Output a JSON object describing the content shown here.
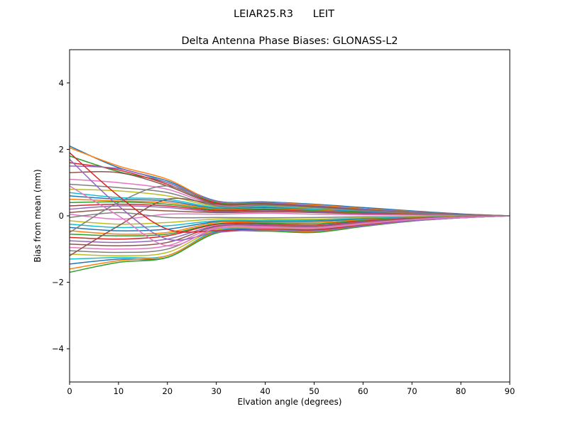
{
  "figure": {
    "background": "#ffffff",
    "frame_color": "#000000"
  },
  "chart_data": {
    "type": "line",
    "suptitle": "LEIAR25.R3      LEIT",
    "title": "Delta Antenna Phase Biases: GLONASS-L2",
    "xlabel": "Elvation angle (degrees)",
    "ylabel": "Bias from mean (mm)",
    "xlim": [
      0,
      90
    ],
    "ylim": [
      -5,
      5
    ],
    "x_ticks": [
      0,
      10,
      20,
      30,
      40,
      50,
      60,
      70,
      80,
      90
    ],
    "y_ticks": [
      -4,
      -2,
      0,
      2,
      4
    ],
    "grid": false,
    "legend": "none",
    "x": [
      0,
      10,
      20,
      30,
      40,
      50,
      60,
      70,
      80,
      90
    ],
    "colors": [
      "#1f77b4",
      "#ff7f0e",
      "#2ca02c",
      "#d62728",
      "#9467bd",
      "#8c564b",
      "#e377c2",
      "#7f7f7f",
      "#bcbd22",
      "#17becf"
    ],
    "series": [
      {
        "values": [
          2.1,
          1.45,
          1.05,
          0.45,
          0.42,
          0.35,
          0.25,
          0.15,
          0.06,
          0.0
        ]
      },
      {
        "values": [
          2.05,
          1.5,
          1.1,
          0.42,
          0.4,
          0.33,
          0.22,
          0.13,
          0.05,
          0.0
        ]
      },
      {
        "values": [
          1.8,
          1.33,
          1.0,
          0.4,
          0.38,
          0.3,
          0.2,
          0.12,
          0.05,
          0.0
        ]
      },
      {
        "values": [
          1.6,
          1.38,
          0.95,
          0.38,
          0.36,
          0.28,
          0.18,
          0.1,
          0.04,
          0.0
        ]
      },
      {
        "values": [
          1.5,
          1.42,
          1.0,
          0.44,
          0.4,
          0.3,
          0.2,
          0.12,
          0.05,
          0.0
        ]
      },
      {
        "values": [
          1.3,
          1.3,
          0.9,
          0.35,
          0.35,
          0.27,
          0.17,
          0.1,
          0.04,
          0.0
        ]
      },
      {
        "values": [
          1.1,
          1.0,
          0.8,
          0.32,
          0.33,
          0.26,
          0.16,
          0.09,
          0.03,
          0.0
        ]
      },
      {
        "values": [
          0.95,
          0.85,
          0.7,
          0.3,
          0.3,
          0.24,
          0.15,
          0.08,
          0.03,
          0.0
        ]
      },
      {
        "values": [
          0.8,
          0.75,
          0.6,
          0.28,
          0.3,
          0.22,
          0.14,
          0.08,
          0.03,
          0.0
        ]
      },
      {
        "values": [
          0.7,
          0.55,
          0.5,
          0.25,
          0.28,
          0.2,
          0.13,
          0.07,
          0.02,
          0.0
        ]
      },
      {
        "values": [
          0.6,
          0.5,
          0.45,
          0.22,
          0.25,
          0.18,
          0.12,
          0.06,
          0.02,
          0.0
        ]
      },
      {
        "values": [
          0.5,
          0.45,
          0.4,
          0.2,
          0.22,
          0.17,
          0.1,
          0.06,
          0.02,
          0.0
        ]
      },
      {
        "values": [
          0.4,
          0.42,
          0.35,
          0.18,
          0.2,
          0.15,
          0.1,
          0.05,
          0.02,
          0.0
        ]
      },
      {
        "values": [
          0.3,
          0.35,
          0.3,
          0.15,
          0.18,
          0.13,
          0.08,
          0.05,
          0.02,
          0.0
        ]
      },
      {
        "values": [
          0.2,
          0.3,
          0.25,
          0.12,
          0.15,
          0.12,
          0.07,
          0.04,
          0.01,
          0.0
        ]
      },
      {
        "values": [
          0.1,
          0.2,
          0.15,
          0.1,
          0.12,
          0.1,
          0.06,
          0.03,
          0.01,
          0.0
        ]
      },
      {
        "values": [
          0.05,
          -0.1,
          0.05,
          0.05,
          0.08,
          0.05,
          0.03,
          0.02,
          0.01,
          0.0
        ]
      },
      {
        "values": [
          -0.05,
          0.1,
          -0.05,
          -0.05,
          -0.06,
          -0.05,
          -0.03,
          -0.02,
          -0.01,
          0.0
        ]
      },
      {
        "values": [
          -0.15,
          -0.25,
          -0.2,
          -0.1,
          -0.1,
          -0.1,
          -0.06,
          -0.03,
          -0.01,
          0.0
        ]
      },
      {
        "values": [
          -0.25,
          -0.35,
          -0.3,
          -0.15,
          -0.14,
          -0.13,
          -0.08,
          -0.04,
          -0.02,
          0.0
        ]
      },
      {
        "values": [
          -0.35,
          -0.45,
          -0.4,
          -0.18,
          -0.17,
          -0.16,
          -0.1,
          -0.05,
          -0.02,
          0.0
        ]
      },
      {
        "values": [
          -0.45,
          -0.55,
          -0.5,
          -0.2,
          -0.2,
          -0.2,
          -0.12,
          -0.06,
          -0.02,
          0.0
        ]
      },
      {
        "values": [
          -0.55,
          -0.6,
          -0.55,
          -0.24,
          -0.22,
          -0.24,
          -0.14,
          -0.07,
          -0.03,
          0.0
        ]
      },
      {
        "values": [
          -0.65,
          -0.7,
          -0.6,
          -0.26,
          -0.25,
          -0.28,
          -0.16,
          -0.08,
          -0.03,
          0.0
        ]
      },
      {
        "values": [
          -0.75,
          -0.8,
          -0.7,
          -0.3,
          -0.28,
          -0.3,
          -0.18,
          -0.09,
          -0.03,
          0.0
        ]
      },
      {
        "values": [
          -0.85,
          -0.9,
          -0.8,
          -0.32,
          -0.3,
          -0.32,
          -0.2,
          -0.1,
          -0.04,
          0.0
        ]
      },
      {
        "values": [
          -0.95,
          -1.0,
          -0.9,
          -0.35,
          -0.32,
          -0.35,
          -0.22,
          -0.11,
          -0.04,
          0.0
        ]
      },
      {
        "values": [
          -1.05,
          -1.1,
          -1.0,
          -0.4,
          -0.35,
          -0.38,
          -0.24,
          -0.12,
          -0.05,
          0.0
        ]
      },
      {
        "values": [
          -1.15,
          -1.2,
          -1.1,
          -0.42,
          -0.38,
          -0.4,
          -0.26,
          -0.13,
          -0.05,
          0.0
        ]
      },
      {
        "values": [
          -1.3,
          -1.25,
          -1.2,
          -0.45,
          -0.4,
          -0.42,
          -0.28,
          -0.14,
          -0.05,
          0.0
        ]
      },
      {
        "values": [
          -1.45,
          -1.3,
          -1.25,
          -0.48,
          -0.42,
          -0.45,
          -0.3,
          -0.15,
          -0.06,
          0.0
        ]
      },
      {
        "values": [
          -1.6,
          -1.35,
          -1.2,
          -0.5,
          -0.45,
          -0.48,
          -0.3,
          -0.15,
          -0.06,
          0.0
        ]
      },
      {
        "values": [
          -1.7,
          -1.4,
          -1.25,
          -0.52,
          -0.46,
          -0.5,
          -0.32,
          -0.16,
          -0.06,
          0.0
        ]
      },
      {
        "values": [
          1.9,
          0.6,
          -0.4,
          -0.45,
          -0.4,
          -0.42,
          -0.28,
          -0.14,
          -0.05,
          0.0
        ]
      },
      {
        "values": [
          1.7,
          0.3,
          -0.7,
          -0.5,
          -0.42,
          -0.45,
          -0.3,
          -0.15,
          -0.06,
          0.0
        ]
      },
      {
        "values": [
          -1.2,
          -0.3,
          0.5,
          0.35,
          0.35,
          0.28,
          0.18,
          0.1,
          0.04,
          0.0
        ]
      },
      {
        "values": [
          0.9,
          0.0,
          -0.9,
          -0.38,
          -0.35,
          -0.38,
          -0.24,
          -0.12,
          -0.05,
          0.0
        ]
      },
      {
        "values": [
          -0.5,
          0.4,
          0.9,
          0.3,
          0.32,
          0.25,
          0.16,
          0.09,
          0.03,
          0.0
        ]
      }
    ]
  }
}
